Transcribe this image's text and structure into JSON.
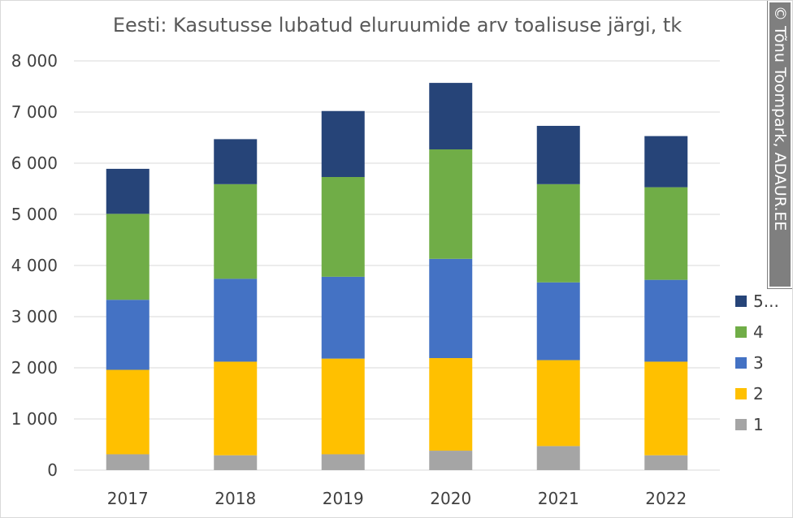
{
  "chart_data": {
    "type": "bar",
    "stacked": true,
    "title": "Eesti: Kasutusse lubatud eluruumide arv toalisuse järgi, tk",
    "xlabel": "",
    "ylabel": "",
    "ylim": [
      0,
      8000
    ],
    "yticks": [
      0,
      1000,
      2000,
      3000,
      4000,
      5000,
      6000,
      7000,
      8000
    ],
    "ytick_labels": [
      "0",
      "1 000",
      "2 000",
      "3 000",
      "4 000",
      "5 000",
      "6 000",
      "7 000",
      "8 000"
    ],
    "categories": [
      "2017",
      "2018",
      "2019",
      "2020",
      "2021",
      "2022"
    ],
    "grid": true,
    "legend_position": "right",
    "series": [
      {
        "name": "1",
        "color": "#a5a5a5",
        "values": [
          310,
          290,
          310,
          380,
          470,
          290
        ]
      },
      {
        "name": "2",
        "color": "#ffc000",
        "values": [
          1650,
          1830,
          1870,
          1810,
          1680,
          1830
        ]
      },
      {
        "name": "3",
        "color": "#4472c4",
        "values": [
          1370,
          1620,
          1600,
          1940,
          1520,
          1600
        ]
      },
      {
        "name": "4",
        "color": "#70ad47",
        "values": [
          1680,
          1850,
          1950,
          2140,
          1920,
          1810
        ]
      },
      {
        "name": "5...",
        "color": "#264478",
        "values": [
          880,
          880,
          1290,
          1300,
          1140,
          1000
        ]
      }
    ]
  },
  "credit": "© Tõnu Toompark, ADAUR.EE"
}
